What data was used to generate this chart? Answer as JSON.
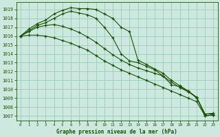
{
  "title": "Graphe pression niveau de la mer (hPa)",
  "background_color": "#cce8df",
  "grid_color": "#99ccbb",
  "line_color": "#1a5200",
  "x_labels": [
    "0",
    "1",
    "2",
    "3",
    "4",
    "5",
    "6",
    "7",
    "8",
    "9",
    "10",
    "11",
    "12",
    "13",
    "14",
    "15",
    "16",
    "17",
    "18",
    "19",
    "20",
    "21",
    "22",
    "23"
  ],
  "ylim": [
    1006.5,
    1019.8
  ],
  "yticks": [
    1007,
    1008,
    1009,
    1010,
    1011,
    1012,
    1013,
    1014,
    1015,
    1016,
    1017,
    1018,
    1019
  ],
  "series": [
    [
      1016.0,
      1016.1,
      1016.1,
      1016.0,
      1015.8,
      1015.5,
      1015.2,
      1014.8,
      1014.4,
      1013.8,
      1013.2,
      1012.7,
      1012.2,
      1011.8,
      1011.4,
      1011.0,
      1010.6,
      1010.2,
      1009.8,
      1009.4,
      1009.0,
      1008.6,
      1007.0,
      1007.1
    ],
    [
      1016.0,
      1016.5,
      1017.0,
      1017.2,
      1017.3,
      1017.1,
      1016.8,
      1016.4,
      1015.9,
      1015.3,
      1014.6,
      1013.9,
      1013.3,
      1012.8,
      1012.4,
      1012.1,
      1011.8,
      1011.5,
      1010.8,
      1010.2,
      1009.7,
      1009.1,
      1007.0,
      1007.1
    ],
    [
      1016.0,
      1016.6,
      1017.2,
      1017.5,
      1018.0,
      1018.5,
      1018.8,
      1018.6,
      1018.4,
      1018.0,
      1017.0,
      1015.8,
      1014.0,
      1013.2,
      1013.0,
      1012.6,
      1012.2,
      1011.5,
      1010.5,
      1010.3,
      1009.8,
      1009.1,
      1007.2,
      1007.2
    ],
    [
      1016.0,
      1016.8,
      1017.4,
      1017.8,
      1018.5,
      1018.9,
      1019.2,
      1019.1,
      1019.1,
      1019.0,
      1018.5,
      1018.0,
      1017.0,
      1016.5,
      1013.3,
      1012.8,
      1012.3,
      1011.8,
      1011.0,
      1010.4,
      1009.8,
      1009.0,
      1007.2,
      1007.3
    ]
  ]
}
